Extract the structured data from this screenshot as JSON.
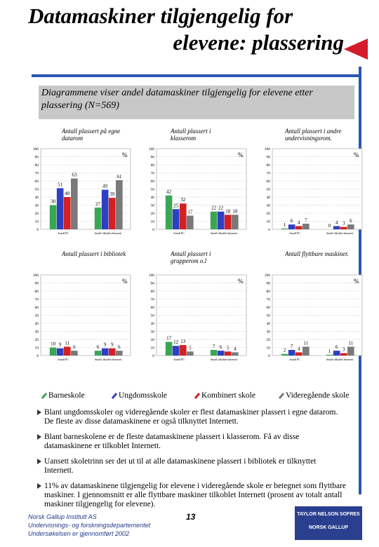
{
  "slide": {
    "title": [
      "Datamaskiner tilgjengelig for",
      "elevene: plassering"
    ],
    "description": "Diagrammene viser  andel datamaskiner tilgjengelig for elevene etter plassering (N=569)",
    "bullets": [
      "Blant ungdomsskoler og videregående skoler er flest datamaskiner plassert i egne datarom. De fleste av disse datamaskinene er også tilknyttet Internett.",
      "Blant barneskolene er de fleste datamaskinene plassert i klasserom.  Få av disse datamaskinene er tilkoblet Internett.",
      "Uansett skoletrinn ser det ut til at alle datamaskinene plassert i bibliotek er tilknyttet Internett.",
      "11% av datamaskinene tilgjengelig for elevene i videregående skole er betegnet som flyttbare maskiner. I gjennomsnitt er alle flyttbare maskiner tilkoblet Internett  (prosent av totalt antall maskiner tilgjengelig for elevene)."
    ],
    "footer": [
      "Norsk Gallup Institutt AS",
      "Undervisnings- og forskningsdepartementet",
      "Undersøkelsen er gjennomført 2002"
    ],
    "page": "13",
    "logo": [
      "TAYLOR NELSON SOFRES",
      "NORSK GALLUP"
    ]
  },
  "chart_data": {
    "type": "bar",
    "categories": [
      "Antall PC",
      "Antall tilkoblet Internett"
    ],
    "series": [
      {
        "name": "Barneskole",
        "color": "#3aa655"
      },
      {
        "name": "Ungdomsskole",
        "color": "#2f3fc4"
      },
      {
        "name": "Kombinert skole",
        "color": "#d42020"
      },
      {
        "name": "Videregående skole",
        "color": "#7a7a7a"
      }
    ],
    "y_label": "%",
    "ylim": [
      0,
      100
    ],
    "yticks": [
      0,
      10,
      20,
      30,
      40,
      50,
      60,
      70,
      80,
      90,
      100
    ],
    "grid": true,
    "panels": [
      {
        "title": "Antall plassert på egne datarom",
        "values": [
          [
            30,
            27
          ],
          [
            51,
            49
          ],
          [
            40,
            39
          ],
          [
            63,
            61
          ]
        ]
      },
      {
        "title": "Antall plassert i klasserom",
        "values": [
          [
            42,
            22
          ],
          [
            25,
            22
          ],
          [
            32,
            18
          ],
          [
            17,
            18
          ]
        ]
      },
      {
        "title": "Antall plassert i andre undervisningsrom.",
        "values": [
          [
            1,
            0
          ],
          [
            6,
            4
          ],
          [
            4,
            3
          ],
          [
            7,
            6
          ]
        ]
      },
      {
        "title": "Antall plassert i bibliotek",
        "values": [
          [
            10,
            6
          ],
          [
            9,
            9
          ],
          [
            11,
            9
          ],
          [
            6,
            6
          ]
        ]
      },
      {
        "title": "Antall plassert i grupperom o.l",
        "values": [
          [
            17,
            7
          ],
          [
            12,
            6
          ],
          [
            13,
            5
          ],
          [
            5,
            4
          ]
        ]
      },
      {
        "title": "Antall flyttbare maskiner.",
        "values": [
          [
            2,
            1
          ],
          [
            7,
            6
          ],
          [
            4,
            3
          ],
          [
            11,
            11
          ]
        ]
      }
    ]
  }
}
